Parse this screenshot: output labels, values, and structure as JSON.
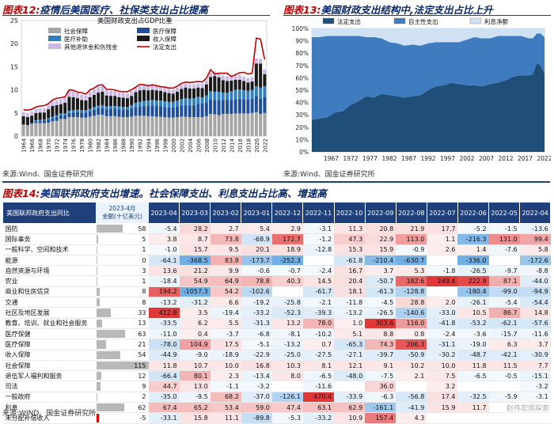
{
  "fig12": {
    "title_prefix": "图表12:",
    "title": "疫情后美国医疗、社保类支出占比提高",
    "chart_data": {
      "type": "bar",
      "stacked": true,
      "title": "美国财政支出占GDP比重",
      "ylim": [
        0,
        25
      ],
      "yticks": [
        0,
        5,
        10,
        15,
        20,
        25
      ],
      "years": [
        1964,
        1965,
        1966,
        1967,
        1968,
        1969,
        1970,
        1971,
        1972,
        1973,
        1974,
        1975,
        1976,
        1977,
        1978,
        1979,
        1980,
        1981,
        1982,
        1983,
        1984,
        1985,
        1986,
        1987,
        1988,
        1989,
        1990,
        1991,
        1992,
        1993,
        1994,
        1995,
        1996,
        1997,
        1998,
        1999,
        2000,
        2001,
        2002,
        2003,
        2004,
        2005,
        2006,
        2007,
        2008,
        2009,
        2010,
        2011,
        2012,
        2013,
        2014,
        2015,
        2016,
        2017,
        2018,
        2019,
        2020,
        2021,
        2022
      ],
      "xtick_labels": [
        "1964",
        "1966",
        "1968",
        "1970",
        "1972",
        "1974",
        "1976",
        "1978",
        "1980",
        "1982",
        "1984",
        "1986",
        "1988",
        "1990",
        "1992",
        "1994",
        "1996",
        "1998",
        "2000",
        "2002",
        "2004",
        "2006",
        "2008",
        "2010",
        "2012",
        "2014",
        "2016",
        "2018",
        "2020",
        "2022"
      ],
      "series": [
        {
          "name": "社会保障",
          "color": "#a6a6a6",
          "values": [
            2.5,
            2.4,
            2.6,
            2.8,
            2.8,
            2.8,
            2.9,
            3.2,
            3.3,
            3.7,
            3.7,
            4.1,
            4.1,
            4.1,
            4.0,
            4.0,
            4.2,
            4.4,
            4.6,
            4.6,
            4.3,
            4.3,
            4.3,
            4.2,
            4.1,
            4.1,
            4.2,
            4.4,
            4.4,
            4.4,
            4.3,
            4.3,
            4.2,
            4.2,
            4.1,
            4.0,
            4.0,
            4.1,
            4.2,
            4.2,
            4.1,
            4.1,
            4.1,
            4.1,
            4.3,
            4.8,
            4.7,
            4.5,
            4.8,
            4.8,
            4.8,
            4.9,
            4.9,
            4.9,
            4.9,
            5.0,
            5.2,
            4.8,
            5.0
          ]
        },
        {
          "name": "医疗保障",
          "color": "#1f4e9c",
          "values": [
            0.0,
            0.0,
            0.1,
            0.4,
            0.5,
            0.6,
            0.7,
            0.7,
            0.8,
            0.8,
            0.8,
            0.9,
            1.0,
            1.1,
            1.1,
            1.1,
            1.2,
            1.3,
            1.4,
            1.5,
            1.5,
            1.6,
            1.6,
            1.6,
            1.6,
            1.6,
            1.8,
            1.9,
            2.0,
            2.1,
            2.2,
            2.3,
            2.3,
            2.3,
            2.2,
            2.2,
            2.2,
            2.3,
            2.4,
            2.5,
            2.5,
            2.6,
            2.9,
            2.9,
            3.0,
            3.2,
            3.1,
            3.3,
            3.0,
            3.0,
            3.0,
            3.1,
            3.2,
            3.1,
            3.0,
            3.1,
            3.5,
            3.3,
            3.4
          ]
        },
        {
          "name": "医疗补助",
          "color": "#2f7fc1",
          "values": [
            0.0,
            0.0,
            0.1,
            0.2,
            0.2,
            0.2,
            0.3,
            0.3,
            0.4,
            0.4,
            0.4,
            0.5,
            0.5,
            0.5,
            0.5,
            0.5,
            0.5,
            0.6,
            0.6,
            0.6,
            0.6,
            0.6,
            0.6,
            0.6,
            0.6,
            0.6,
            0.7,
            0.9,
            1.0,
            1.1,
            1.2,
            1.2,
            1.2,
            1.2,
            1.2,
            1.2,
            1.2,
            1.3,
            1.4,
            1.5,
            1.5,
            1.5,
            1.5,
            1.4,
            1.5,
            1.7,
            1.8,
            1.8,
            1.6,
            1.6,
            1.9,
            2.0,
            2.0,
            1.9,
            1.9,
            1.9,
            2.1,
            2.4,
            2.4
          ]
        },
        {
          "name": "收入保障",
          "color": "#1a1a1a",
          "values": [
            1.8,
            1.7,
            1.6,
            1.6,
            1.6,
            1.5,
            1.9,
            2.3,
            2.2,
            2.0,
            2.3,
            3.0,
            2.8,
            2.5,
            2.2,
            2.1,
            2.5,
            2.6,
            2.8,
            2.9,
            2.4,
            2.2,
            2.2,
            2.0,
            2.0,
            1.9,
            2.0,
            2.3,
            2.5,
            2.4,
            2.2,
            2.2,
            2.2,
            2.1,
            2.0,
            1.9,
            1.8,
            1.9,
            2.2,
            2.3,
            2.2,
            2.1,
            2.0,
            2.0,
            2.4,
            3.1,
            3.4,
            3.1,
            2.7,
            2.5,
            2.3,
            2.2,
            2.1,
            2.0,
            1.8,
            1.8,
            4.9,
            5.2,
            2.6
          ]
        },
        {
          "name": "其他退休金和伤残金",
          "color": "#c9b8e8",
          "values": [
            0.9,
            0.9,
            0.9,
            0.9,
            0.9,
            0.9,
            1.0,
            1.0,
            1.0,
            1.1,
            1.1,
            1.2,
            1.2,
            1.2,
            1.2,
            1.1,
            1.2,
            1.2,
            1.2,
            1.2,
            1.1,
            1.1,
            1.1,
            1.1,
            1.0,
            1.0,
            1.0,
            1.0,
            1.0,
            1.0,
            1.0,
            1.0,
            1.0,
            0.9,
            0.9,
            0.9,
            0.9,
            0.9,
            0.9,
            0.9,
            0.9,
            0.9,
            0.9,
            0.9,
            0.9,
            1.0,
            1.0,
            1.0,
            1.0,
            1.0,
            1.0,
            1.0,
            1.0,
            1.0,
            1.0,
            1.0,
            1.1,
            1.0,
            1.0
          ]
        },
        {
          "name": "法定支出",
          "color": "#c00000",
          "type": "line",
          "values": [
            5.7,
            5.6,
            5.8,
            6.3,
            6.5,
            6.6,
            7.0,
            7.8,
            8.2,
            8.3,
            8.5,
            10.0,
            9.9,
            9.5,
            9.4,
            9.1,
            10.0,
            10.4,
            11.0,
            11.1,
            10.1,
            10.1,
            10.0,
            9.7,
            9.6,
            9.6,
            10.0,
            10.6,
            11.2,
            11.1,
            10.9,
            11.1,
            10.9,
            10.7,
            10.6,
            10.4,
            10.4,
            10.8,
            11.4,
            11.7,
            11.6,
            11.7,
            11.8,
            11.7,
            12.5,
            14.4,
            13.4,
            13.6,
            13.6,
            13.6,
            12.9,
            13.3,
            13.7,
            13.8,
            13.4,
            13.6,
            21.2,
            21.0,
            16.6
          ]
        }
      ]
    }
  },
  "fig13": {
    "title_prefix": "图表13:",
    "title": "美国财政支出结构中,法定支出占比上升",
    "chart_data": {
      "type": "area",
      "stacked": true,
      "percent": true,
      "ylim": [
        0,
        100
      ],
      "yticks": [
        "0%",
        "10%",
        "20%",
        "30%",
        "40%",
        "50%",
        "60%",
        "70%",
        "80%",
        "90%",
        "100%"
      ],
      "xtick_labels": [
        "1967",
        "1972",
        "1977",
        "1982",
        "1987",
        "1992",
        "1997",
        "2002",
        "2007",
        "2012",
        "2017",
        "2022"
      ],
      "x": [
        1962,
        1964,
        1966,
        1968,
        1970,
        1972,
        1974,
        1976,
        1978,
        1980,
        1982,
        1984,
        1986,
        1988,
        1990,
        1992,
        1994,
        1996,
        1998,
        2000,
        2002,
        2004,
        2006,
        2008,
        2010,
        2012,
        2014,
        2016,
        2018,
        2019,
        2020,
        2021,
        2022
      ],
      "series": [
        {
          "name": "法定支出",
          "color": "#1f4e79",
          "values": [
            26,
            27,
            28,
            32,
            33,
            38,
            41,
            45,
            44,
            47,
            46,
            45,
            44,
            45,
            46,
            50,
            53,
            54,
            56,
            55,
            54,
            54,
            53,
            55,
            56,
            58,
            61,
            62,
            62,
            63,
            72,
            70,
            63
          ]
        },
        {
          "name": "自主性支出",
          "color": "#3f7cbf",
          "values": [
            67,
            66,
            66,
            62,
            61,
            56,
            53,
            48,
            49,
            45,
            43,
            43,
            42,
            42,
            40,
            38,
            36,
            35,
            33,
            34,
            37,
            39,
            39,
            37,
            38,
            36,
            33,
            32,
            30,
            29,
            24,
            26,
            30
          ]
        },
        {
          "name": "利息净额",
          "color": "#cfe2f3",
          "values": [
            7,
            7,
            6,
            6,
            6,
            6,
            6,
            7,
            7,
            8,
            11,
            12,
            14,
            13,
            14,
            12,
            11,
            11,
            11,
            11,
            9,
            7,
            8,
            8,
            6,
            6,
            6,
            6,
            8,
            8,
            4,
            4,
            7
          ]
        }
      ]
    }
  },
  "fig14": {
    "title_prefix": "图表14:",
    "title": "美国联邦政府支出增速。社会保障支出、利息支出占比高、增速高",
    "chart_data": {
      "type": "table",
      "columns": [
        "美国联邦政府支出同比",
        "2023-4月金额(十亿美元)",
        "2023-04",
        "2023-03",
        "2023-02",
        "2023-01",
        "2022-12",
        "2022-11",
        "2022-10",
        "2022-09",
        "2022-08",
        "2022-07",
        "2022-06",
        "2022-05",
        "2022-04"
      ],
      "total_header_line1": "2023-4月",
      "total_header_line2": "金额(十亿美元)",
      "rows": [
        {
          "name": "国防",
          "amount": "58",
          "values": [
            "-5.4",
            "28.2",
            "2.7",
            "5.4",
            "2.9",
            "-3.1",
            "11.3",
            "20.8",
            "21.9",
            "17.7",
            "-5.2",
            "-1.5",
            "-13.6"
          ]
        },
        {
          "name": "国际事务",
          "amount": "5",
          "values": [
            "3.8",
            "8.7",
            "73.8",
            "-68.9",
            "172.7",
            "-1.2",
            "47.3",
            "22.9",
            "113.0",
            "1.1",
            "-216.3",
            "131.0",
            "99.4"
          ]
        },
        {
          "name": "一般科学、空间和技术",
          "amount": "1",
          "values": [
            "-1.0",
            "15.7",
            "9.5",
            "20.1",
            "18.9",
            "-12.8",
            "15.3",
            "15.9",
            "-0.9",
            "2.6",
            "1.4",
            "-7.6",
            "5.8"
          ]
        },
        {
          "name": "能源",
          "amount": "0",
          "values": [
            "-64.1",
            "-368.5",
            "83.8",
            "-173.7",
            "-252.3",
            "",
            "-61.8",
            "-210.4",
            "-630.7",
            "",
            "-336.0",
            "",
            "-172.6"
          ]
        },
        {
          "name": "自然资源与环境",
          "amount": "3",
          "values": [
            "13.6",
            "21.2",
            "9.9",
            "-0.6",
            "-0.7",
            "-2.4",
            "16.7",
            "3.7",
            "5.3",
            "-1.8",
            "-26.5",
            "-9.7",
            "-8.8"
          ]
        },
        {
          "name": "农业",
          "amount": "1",
          "values": [
            "-18.4",
            "54.9",
            "64.9",
            "78.8",
            "40.3",
            "14.5",
            "20.4",
            "-50.7",
            "182.6",
            "249.4",
            "222.9",
            "87.1",
            "-44.0"
          ]
        },
        {
          "name": "商业和住房信贷",
          "amount": "8",
          "values": [
            "194.2",
            "-1057.3",
            "54.2",
            "-102.6",
            "",
            "-61.7",
            "18.1",
            "-61.3",
            "-128.8",
            "",
            "-180.4",
            "-99.0",
            "-94.9"
          ]
        },
        {
          "name": "交通",
          "amount": "8",
          "values": [
            "-13.2",
            "-31.2",
            "6.6",
            "-19.2",
            "-25.8",
            "-2.1",
            "-11.8",
            "-4.5",
            "28.8",
            "2.0",
            "-26.1",
            "-5.4",
            "-54.4"
          ]
        },
        {
          "name": "社区及地区发展",
          "amount": "33",
          "values": [
            "412.8",
            "3.5",
            "-19.4",
            "-33.2",
            "-52.3",
            "-39.3",
            "-13.2",
            "-26.5",
            "-140.6",
            "-33.0",
            "10.5",
            "86.7",
            "14.8"
          ]
        },
        {
          "name": "教育、培训、就业和社会服务",
          "amount": "13",
          "values": [
            "-33.5",
            "6.2",
            "5.5",
            "-31.3",
            "13.2",
            "78.0",
            "1.0",
            "303.6",
            "116.0",
            "-41.8",
            "-53.2",
            "-62.1",
            "-57.6"
          ]
        },
        {
          "name": "医疗保健",
          "amount": "63",
          "values": [
            "-11.0",
            "0.4",
            "-3.7",
            "-6.8",
            "-8.1",
            "-10.2",
            "5.1",
            "8.8",
            "0.8",
            "-2.4",
            "-3.6",
            "-15.7",
            "-11.6"
          ]
        },
        {
          "name": "医疗保障",
          "amount": "21",
          "values": [
            "-78.0",
            "104.9",
            "17.5",
            "-5.1",
            "-13.2",
            "0.7",
            "-65.3",
            "74.3",
            "206.3",
            "-31.1",
            "-19.0",
            "6.3",
            "3.7"
          ]
        },
        {
          "name": "收入保障",
          "amount": "54",
          "values": [
            "-44.9",
            "-9.0",
            "-18.9",
            "-22.9",
            "-25.0",
            "-27.5",
            "-27.1",
            "-39.7",
            "-50.9",
            "-30.2",
            "-48.7",
            "-42.1",
            "-30.9"
          ]
        },
        {
          "name": "社会保障",
          "amount": "115",
          "values": [
            "11.8",
            "10.7",
            "10.0",
            "16.8",
            "10.3",
            "8.1",
            "12.1",
            "9.1",
            "10.2",
            "10.0",
            "11.8",
            "11.5",
            "7.7"
          ]
        },
        {
          "name": "退伍军人福利和服务",
          "amount": "12",
          "values": [
            "-66.4",
            "80.1",
            "2.3",
            "-13.4",
            "8.0",
            "-6.5",
            "-48.0",
            "-7.5",
            "2.1",
            "7.5",
            "-6.5",
            "-0.5",
            "-15.1"
          ]
        },
        {
          "name": "司法",
          "amount": "9",
          "values": [
            "44.7",
            "13.0",
            "-1.1",
            "-3.2",
            "",
            "-11.6",
            "",
            "36.0",
            "",
            "3.2",
            "",
            "",
            "-3.2"
          ]
        },
        {
          "name": "一般政府",
          "amount": "2",
          "values": [
            "-35.0",
            "-9.5",
            "68.2",
            "-37.0",
            "-126.1",
            "470.4",
            "-33.9",
            "-6.3",
            "-56.8",
            "17.4",
            "-32.5",
            "-5.9",
            "-3.1"
          ]
        },
        {
          "name": "利息",
          "amount": "62",
          "values": [
            "67.4",
            "65.2",
            "53.4",
            "59.0",
            "47.4",
            "63.1",
            "62.9",
            "-161.1",
            "-41.9",
            "15.9",
            "11.7",
            "",
            ""
          ]
        },
        {
          "name": "未分配补偿收入",
          "amount": "-5",
          "values": [
            "-33.1",
            "15.8",
            "11.1",
            "-89.8",
            "-5.3",
            "-33.2",
            "10.9",
            "157.4",
            "4.3",
            "",
            "",
            "",
            ""
          ]
        }
      ],
      "amount_max": 115
    }
  },
  "source_top": "来源:Wind、国金证券研究所",
  "source_bottom": "来源:WIND、国金证券研究所",
  "watermark": "赵伟宏观探索"
}
